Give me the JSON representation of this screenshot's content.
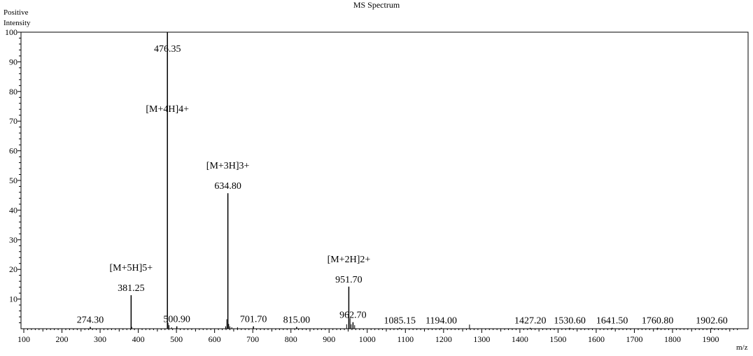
{
  "chart_data": {
    "type": "bar",
    "title": "MS Spectrum",
    "ylabel_lines": [
      "Positive",
      "Intensity"
    ],
    "xlabel": "m/z",
    "xlim": [
      100,
      1975
    ],
    "ylim": [
      0,
      100
    ],
    "x_ticks": [
      100,
      200,
      300,
      400,
      500,
      600,
      700,
      800,
      900,
      1000,
      1100,
      1200,
      1300,
      1400,
      1500,
      1600,
      1700,
      1800,
      1900
    ],
    "y_ticks": [
      10,
      20,
      30,
      40,
      50,
      60,
      70,
      80,
      90,
      100
    ],
    "peaks": [
      {
        "mz": 274.3,
        "intensity": 0.6,
        "label": "274.30"
      },
      {
        "mz": 381.25,
        "intensity": 11.3,
        "label": "381.25",
        "annotation": "[M+5H]5+"
      },
      {
        "mz": 476.35,
        "intensity": 100,
        "label": "476.35",
        "annotation": "[M+4H]4+"
      },
      {
        "mz": 500.9,
        "intensity": 0.8,
        "label": "500.90"
      },
      {
        "mz": 634.8,
        "intensity": 45.7,
        "label": "634.80",
        "annotation": "[M+3H]3+"
      },
      {
        "mz": 701.7,
        "intensity": 0.8,
        "label": "701.70"
      },
      {
        "mz": 815.0,
        "intensity": 0.6,
        "label": "815.00"
      },
      {
        "mz": 951.7,
        "intensity": 14.2,
        "label": "951.70",
        "annotation": "[M+2H]2+"
      },
      {
        "mz": 962.7,
        "intensity": 2.2,
        "label": "962.70"
      },
      {
        "mz": 1085.15,
        "intensity": 0.3,
        "label": "1085.15"
      },
      {
        "mz": 1194.0,
        "intensity": 0.3,
        "label": "1194.00"
      },
      {
        "mz": 1427.2,
        "intensity": 0.3,
        "label": "1427.20"
      },
      {
        "mz": 1530.6,
        "intensity": 0.3,
        "label": "1530.60"
      },
      {
        "mz": 1641.5,
        "intensity": 0.3,
        "label": "1641.50"
      },
      {
        "mz": 1760.8,
        "intensity": 0.3,
        "label": "1760.80"
      },
      {
        "mz": 1902.6,
        "intensity": 0.3,
        "label": "1902.60"
      }
    ],
    "minor_peaks": [
      {
        "mz": 383.0,
        "intensity": 0.6
      },
      {
        "mz": 478.0,
        "intensity": 2.0
      },
      {
        "mz": 480.5,
        "intensity": 1.2
      },
      {
        "mz": 487.0,
        "intensity": 0.5
      },
      {
        "mz": 629.0,
        "intensity": 0.8
      },
      {
        "mz": 632.0,
        "intensity": 3.2
      },
      {
        "mz": 637.0,
        "intensity": 1.6
      },
      {
        "mz": 640.0,
        "intensity": 0.8
      },
      {
        "mz": 645.0,
        "intensity": 0.5
      },
      {
        "mz": 660.0,
        "intensity": 0.5
      },
      {
        "mz": 946.0,
        "intensity": 1.5
      },
      {
        "mz": 955.0,
        "intensity": 3.5
      },
      {
        "mz": 958.0,
        "intensity": 1.5
      },
      {
        "mz": 967.0,
        "intensity": 1.2
      },
      {
        "mz": 1268.0,
        "intensity": 1.4
      }
    ]
  }
}
